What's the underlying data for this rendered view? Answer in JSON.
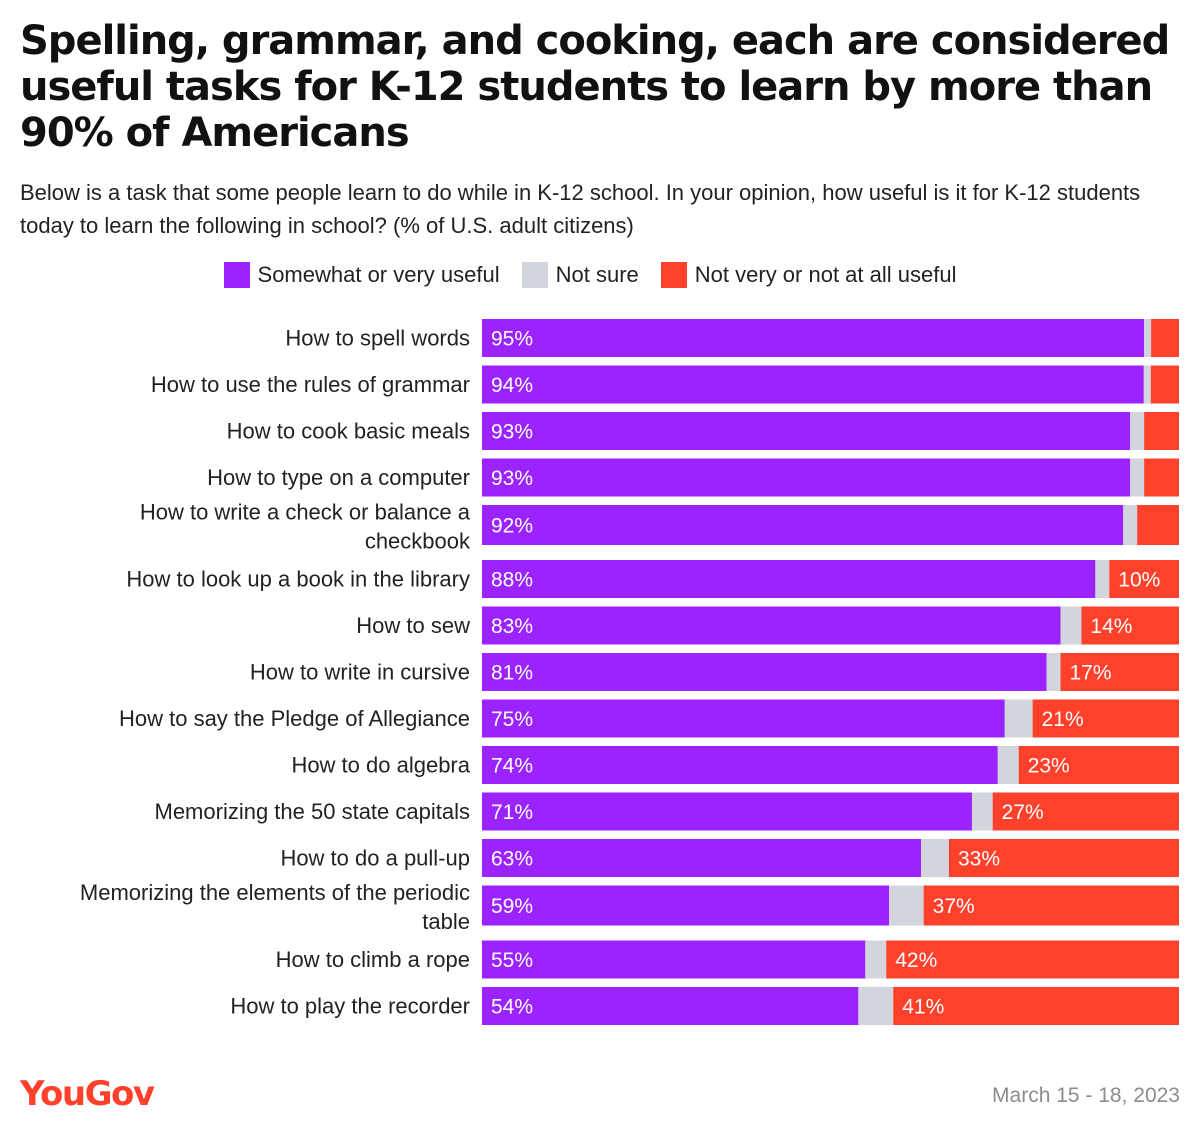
{
  "title": "Spelling, grammar, and cooking, each are considered useful tasks for K-12 students to learn by more than 90% of Americans",
  "subtitle": "Below is a task that some people learn to do while in K-12 school. In your opinion, how useful is it for K-12 students today to learn the following in school? (% of U.S. adult citizens)",
  "footer": {
    "logo": "YouGov",
    "date": "March 15 - 18, 2023"
  },
  "colors": {
    "useful": "#9b23ff",
    "not_sure": "#d3d5dc",
    "not_useful": "#ff412c",
    "logo": "#ff412c"
  },
  "chart_data": {
    "type": "bar",
    "orientation": "horizontal",
    "stacked": true,
    "legend_position": "top",
    "grid": false,
    "xlim": [
      0,
      100
    ],
    "categories": [
      [
        "How to spell words"
      ],
      [
        "How to use the rules of grammar"
      ],
      [
        "How to cook basic meals"
      ],
      [
        "How to type on a computer"
      ],
      [
        "How to write a check or balance a",
        "checkbook"
      ],
      [
        "How to look up a book in the library"
      ],
      [
        "How to sew"
      ],
      [
        "How to write in cursive"
      ],
      [
        "How to say the Pledge of Allegiance"
      ],
      [
        "How to do algebra"
      ],
      [
        "Memorizing the 50 state capitals"
      ],
      [
        "How to do a pull-up"
      ],
      [
        "Memorizing the elements of the periodic",
        "table"
      ],
      [
        "How to climb a rope"
      ],
      [
        "How to play the recorder"
      ]
    ],
    "series": [
      {
        "name": "Somewhat or very useful",
        "color": "#9b23ff",
        "values": [
          95,
          94,
          93,
          93,
          92,
          88,
          83,
          81,
          75,
          74,
          71,
          63,
          59,
          55,
          54
        ],
        "labels": [
          "95%",
          "94%",
          "93%",
          "93%",
          "92%",
          "88%",
          "83%",
          "81%",
          "75%",
          "74%",
          "71%",
          "63%",
          "59%",
          "55%",
          "54%"
        ]
      },
      {
        "name": "Not sure",
        "color": "#d3d5dc",
        "values": [
          1,
          1,
          2,
          2,
          2,
          2,
          3,
          2,
          4,
          3,
          3,
          4,
          5,
          3,
          5
        ],
        "labels": [
          "",
          "",
          "",
          "",
          "",
          "",
          "",
          "",
          "",
          "",
          "",
          "",
          "",
          "",
          ""
        ]
      },
      {
        "name": "Not very or not at all useful",
        "color": "#ff412c",
        "values": [
          4,
          4,
          5,
          5,
          6,
          10,
          14,
          17,
          21,
          23,
          27,
          33,
          37,
          42,
          41
        ],
        "labels": [
          "",
          "",
          "",
          "",
          "",
          "10%",
          "14%",
          "17%",
          "21%",
          "23%",
          "27%",
          "33%",
          "37%",
          "42%",
          "41%"
        ]
      }
    ]
  }
}
